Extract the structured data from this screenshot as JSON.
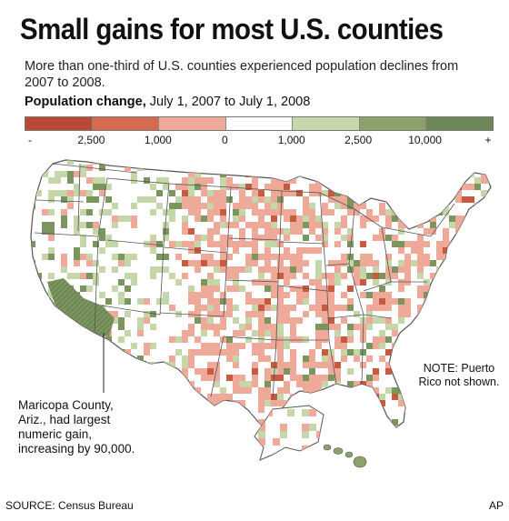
{
  "title": "Small gains for most U.S. counties",
  "subtitle": "More than one-third of U.S. counties experienced population declines from 2007 to 2008.",
  "legend": {
    "title_bold": "Population change,",
    "title_rest": " July 1, 2007 to July 1, 2008",
    "colors": [
      "#b84a34",
      "#d56a4f",
      "#efa999",
      "#ffffff",
      "#c5d6a9",
      "#8ba36a",
      "#6e8757"
    ],
    "tick_labels": [
      "-",
      "2,500",
      "1,000",
      "0",
      "1,000",
      "2,500",
      "10,000",
      "+"
    ]
  },
  "map": {
    "land_color": "#ffffff",
    "border_color": "#555555",
    "decline_color": "#efa999",
    "decline_dark_color": "#c85a40",
    "gain_color": "#c5d6a9",
    "gain_dark_color": "#7b955f"
  },
  "note": "NOTE: Puerto Rico not shown.",
  "callout": "Maricopa County, Ariz., had largest numeric gain, increasing by 90,000.",
  "source": "SOURCE: Census Bureau",
  "credit": "AP"
}
